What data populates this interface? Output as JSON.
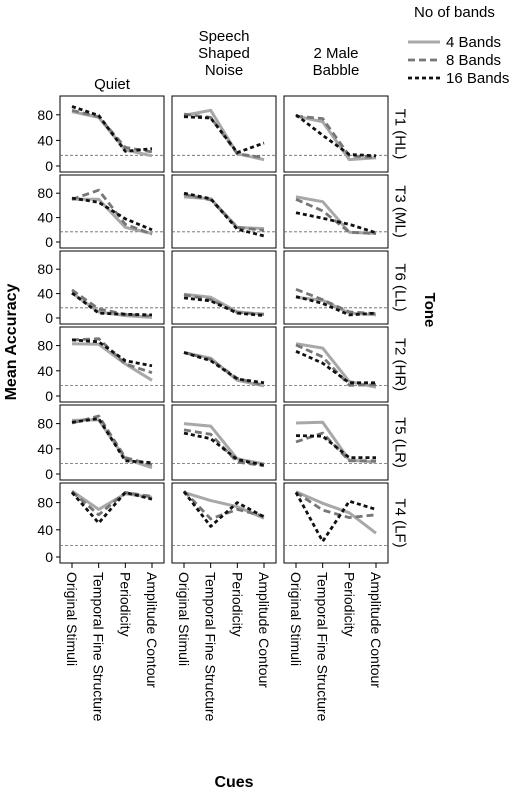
{
  "chart_data": {
    "type": "line",
    "ylabel": "Mean Accuracy",
    "xlabel": "Cues",
    "row_title": "Tone",
    "legend_title": "No of bands",
    "legend_position": "top-right",
    "ylim": [
      0,
      100
    ],
    "yticks": [
      0,
      40,
      80
    ],
    "chance_level": 16.7,
    "categories": [
      "Original Stimuli",
      "Temporal Fine Structure",
      "Periodicity",
      "Amplitude Contour"
    ],
    "columns": [
      "Quiet",
      "Speech Shaped Noise",
      "2 Male Babble"
    ],
    "column_labels": [
      [
        "Quiet"
      ],
      [
        "Speech",
        "Shaped",
        "Noise"
      ],
      [
        "2 Male",
        "Babble"
      ]
    ],
    "rows": [
      "T1 (HL)",
      "T3 (ML)",
      "T6 (LL)",
      "T2 (HR)",
      "T5 (LR)",
      "T4 (LF)"
    ],
    "series_styles": [
      {
        "name": "4 Bands",
        "color": "#a8a8a8",
        "dash": "solid"
      },
      {
        "name": "8 Bands",
        "color": "#777777",
        "dash": "dashed"
      },
      {
        "name": "16 Bands",
        "color": "#111111",
        "dash": "dotted"
      }
    ],
    "panels": [
      [
        {
          "4 Bands": [
            85,
            76,
            25,
            16
          ],
          "8 Bands": [
            87,
            77,
            29,
            22
          ],
          "16 Bands": [
            93,
            79,
            23,
            27
          ]
        },
        {
          "4 Bands": [
            79,
            87,
            19,
            10
          ],
          "8 Bands": [
            81,
            76,
            19,
            13
          ],
          "16 Bands": [
            77,
            75,
            21,
            36
          ]
        },
        {
          "4 Bands": [
            78,
            69,
            10,
            13
          ],
          "8 Bands": [
            78,
            74,
            16,
            13
          ],
          "16 Bands": [
            80,
            48,
            18,
            16
          ]
        }
      ],
      [
        {
          "4 Bands": [
            70,
            70,
            24,
            14
          ],
          "8 Bands": [
            70,
            85,
            29,
            13
          ],
          "16 Bands": [
            72,
            65,
            38,
            20
          ]
        },
        {
          "4 Bands": [
            74,
            71,
            24,
            22
          ],
          "8 Bands": [
            78,
            69,
            24,
            19
          ],
          "16 Bands": [
            80,
            71,
            21,
            10
          ]
        },
        {
          "4 Bands": [
            74,
            66,
            16,
            14
          ],
          "8 Bands": [
            70,
            51,
            16,
            14
          ],
          "16 Bands": [
            48,
            39,
            29,
            15
          ]
        }
      ],
      [
        {
          "4 Bands": [
            41,
            10,
            4,
            1
          ],
          "8 Bands": [
            46,
            15,
            6,
            3
          ],
          "16 Bands": [
            41,
            8,
            6,
            5
          ]
        },
        {
          "4 Bands": [
            39,
            34,
            10,
            6
          ],
          "8 Bands": [
            38,
            30,
            9,
            6
          ],
          "16 Bands": [
            33,
            28,
            8,
            4
          ]
        },
        {
          "4 Bands": [
            34,
            29,
            8,
            5
          ],
          "8 Bands": [
            47,
            30,
            10,
            7
          ],
          "16 Bands": [
            35,
            24,
            5,
            8
          ]
        }
      ],
      [
        {
          "4 Bands": [
            83,
            82,
            51,
            25
          ],
          "8 Bands": [
            89,
            91,
            51,
            37
          ],
          "16 Bands": [
            89,
            86,
            56,
            48
          ]
        },
        {
          "4 Bands": [
            69,
            60,
            25,
            16
          ],
          "8 Bands": [
            69,
            58,
            28,
            17
          ],
          "16 Bands": [
            69,
            56,
            27,
            21
          ]
        },
        {
          "4 Bands": [
            83,
            76,
            23,
            14
          ],
          "8 Bands": [
            81,
            62,
            17,
            18
          ],
          "16 Bands": [
            71,
            52,
            21,
            21
          ]
        }
      ],
      [
        {
          "4 Bands": [
            85,
            86,
            24,
            10
          ],
          "8 Bands": [
            81,
            92,
            26,
            15
          ],
          "16 Bands": [
            82,
            88,
            21,
            18
          ]
        },
        {
          "4 Bands": [
            80,
            76,
            24,
            16
          ],
          "8 Bands": [
            70,
            63,
            19,
            13
          ],
          "16 Bands": [
            65,
            56,
            23,
            14
          ]
        },
        {
          "4 Bands": [
            81,
            82,
            22,
            19
          ],
          "8 Bands": [
            51,
            65,
            21,
            21
          ],
          "16 Bands": [
            61,
            60,
            26,
            26
          ]
        }
      ],
      [
        {
          "4 Bands": [
            97,
            70,
            93,
            88
          ],
          "8 Bands": [
            96,
            62,
            95,
            89
          ],
          "16 Bands": [
            95,
            50,
            95,
            85
          ]
        },
        {
          "4 Bands": [
            95,
            83,
            74,
            57
          ],
          "8 Bands": [
            97,
            56,
            70,
            60
          ],
          "16 Bands": [
            96,
            45,
            80,
            59
          ]
        },
        {
          "4 Bands": [
            96,
            79,
            65,
            35
          ],
          "8 Bands": [
            95,
            69,
            58,
            62
          ],
          "16 Bands": [
            95,
            23,
            82,
            70
          ]
        }
      ]
    ]
  }
}
